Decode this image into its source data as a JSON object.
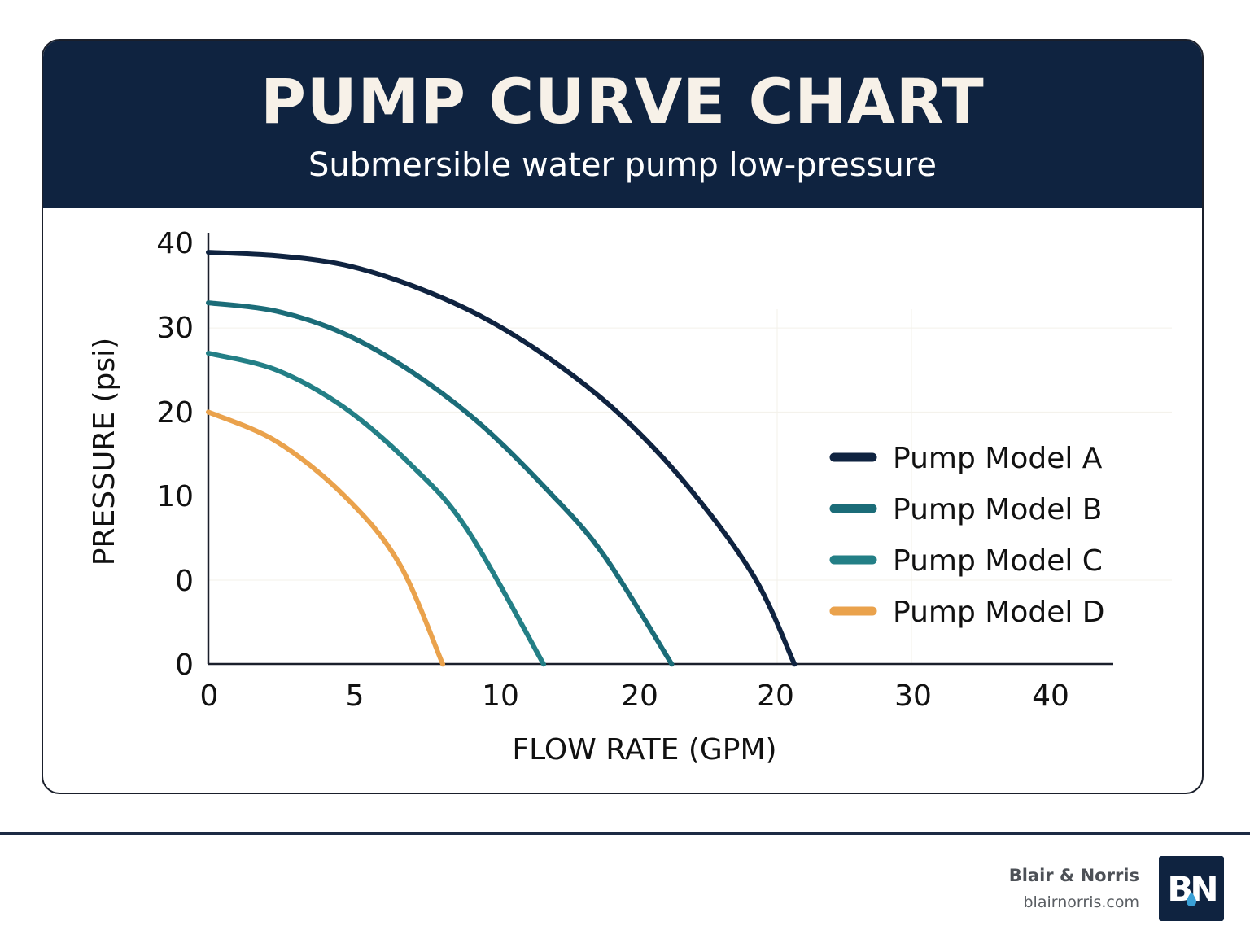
{
  "header": {
    "title": "PUMP CURVE CHART",
    "subtitle": "Submersible water pump low-pressure"
  },
  "chart_data": {
    "type": "line",
    "title": "PUMP CURVE CHART",
    "subtitle": "Submersible water pump low-pressure",
    "xlabel": "FLOW RATE (GPM)",
    "ylabel": "PRESSURE (psi)",
    "x_tick_labels": [
      "0",
      "5",
      "10",
      "20",
      "20",
      "30",
      "40"
    ],
    "y_tick_labels": [
      "0",
      "0",
      "10",
      "20",
      "30",
      "40"
    ],
    "xlim": [
      0,
      31
    ],
    "ylim": [
      -10,
      40
    ],
    "grid": false,
    "legend_position": "right",
    "series": [
      {
        "name": "Pump Model A",
        "color": "#0f2340",
        "x": [
          0,
          2.5,
          5,
          7.5,
          10,
          12.5,
          15,
          17.5,
          20,
          21.5
        ],
        "y": [
          39,
          38.6,
          37.5,
          35,
          31.4,
          26.4,
          20,
          11.5,
          0.5,
          -10
        ]
      },
      {
        "name": "Pump Model B",
        "color": "#1b6c78",
        "x": [
          0,
          2.5,
          5,
          7.5,
          10,
          12.5,
          14.5,
          17
        ],
        "y": [
          33,
          32,
          29.3,
          24.7,
          18.5,
          10.5,
          3,
          -10
        ]
      },
      {
        "name": "Pump Model C",
        "color": "#237f86",
        "x": [
          0,
          2.5,
          5,
          7.5,
          9.5,
          12.3
        ],
        "y": [
          27,
          25,
          20.5,
          13.5,
          6,
          -10
        ]
      },
      {
        "name": "Pump Model D",
        "color": "#eaa24c",
        "x": [
          0,
          2.5,
          5,
          7,
          8.6
        ],
        "y": [
          20,
          16.5,
          10,
          2,
          -10
        ]
      }
    ]
  },
  "footer": {
    "brand": "Blair & Norris",
    "url": "blairnorris.com",
    "logo_text": "BN"
  }
}
